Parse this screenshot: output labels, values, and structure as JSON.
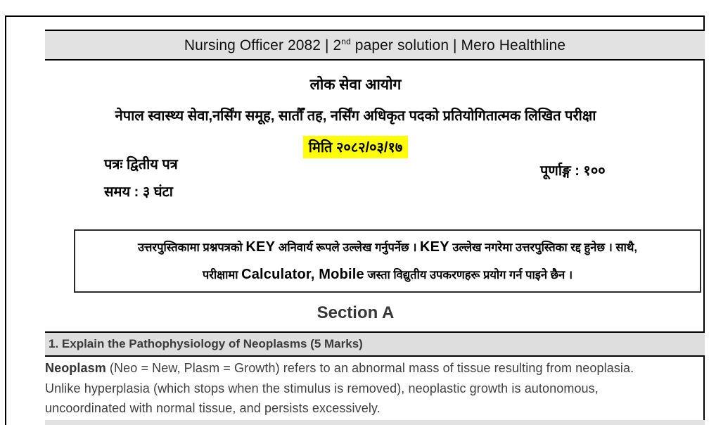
{
  "colors": {
    "bar_gray": "#e2e2e2",
    "question_bar_gray": "#dedede",
    "highlight_yellow": "#ffff00",
    "border_black": "#000000"
  },
  "header": {
    "title_pre": "Nursing Officer 2082 | 2",
    "title_sup": "nd",
    "title_post": " paper solution | Mero Healthline"
  },
  "exam_header": {
    "commission": "लोक सेवा आयोग",
    "exam_line": "नेपाल स्वास्थ्य सेवा,नर्सिंग समूह,  सातौँ तह,  नर्सिंग अधिकृत पदको प्रतियोगितात्मक लिखित परीक्षा",
    "date": "मिति २०८२/०३/१७",
    "paper": "पत्रः द्वितीय पत्र",
    "time": "समय : ३ घंटा",
    "full_marks": "पूर्णाङ्ग : १००"
  },
  "instructions": {
    "l1s1": "उत्तरपुस्तिकामा प्रश्नपत्रको ",
    "l1b1": "KEY",
    "l1s2": " अनिवार्य रूपले उल्लेख गर्नुपर्नेछ । ",
    "l1b2": "KEY",
    "l1s3": " उल्लेख नगरेमा उत्तरपुस्तिका रद्द हुनेछ । साथै,",
    "l2s1": "परीक्षामा ",
    "l2b1": "Calculator, Mobile",
    "l2s2": " जस्ता विद्युतीय उपकरणहरू प्रयोग गर्न पाइने छैन ।"
  },
  "section": {
    "title": "Section A"
  },
  "question1": {
    "heading": "1. Explain the Pathophysiology of Neoplasms (5 Marks)",
    "answer_bold": "Neoplasm",
    "answer_rest": " (Neo = New, Plasm = Growth) refers to an abnormal mass of tissue resulting from neoplasia. Unlike hyperplasia (which stops when the stimulus is removed), neoplastic growth is autonomous, uncoordinated with normal tissue, and persists excessively."
  }
}
